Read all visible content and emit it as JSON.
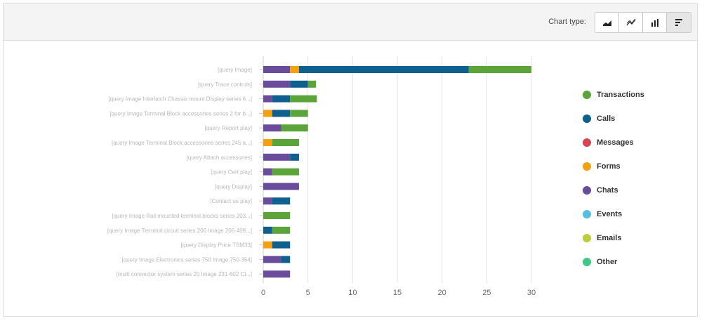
{
  "toolbar": {
    "chart_type_label": "Chart type:",
    "buttons": [
      {
        "name": "area-chart",
        "icon": "area-chart-icon",
        "active": false
      },
      {
        "name": "line-chart",
        "icon": "line-chart-icon",
        "active": false
      },
      {
        "name": "column-chart",
        "icon": "column-chart-icon",
        "active": false
      },
      {
        "name": "bar-chart",
        "icon": "bar-chart-icon",
        "active": true
      }
    ]
  },
  "chart_data": {
    "type": "bar",
    "orientation": "horizontal",
    "stacked": true,
    "xlim": [
      0,
      30
    ],
    "xticks": [
      0,
      5,
      10,
      15,
      20,
      25,
      30
    ],
    "grid": true,
    "legend_position": "right",
    "categories": [
      "[query Image]",
      "[query Trace controls]",
      "[query Image Interlatch Chassis mount Display series 6...]",
      "[query Image Terminal Block accessories series 2 for b...]",
      "[query Report play]",
      "[query Image Terminal Block accessories series 245 a...]",
      "[query Attach accessories]",
      "[query Cert play]",
      "[query Display]",
      "[Contact us play]",
      "[query Image Rail mounted terminal blocks series 203...]",
      "[query Image Terminal circuit series 206 Image 206-409...]",
      "[query Display Price TSM33]",
      "[query Image Electronics series 750 Image 750-354]",
      "[multi connector system series 20 Image 231-602 Cl...]"
    ],
    "series": [
      {
        "name": "Transactions",
        "color": "#5aa43a",
        "values": [
          7,
          0.9,
          3,
          2,
          3,
          3,
          0,
          3,
          0,
          0,
          3,
          2,
          0,
          0,
          0
        ]
      },
      {
        "name": "Calls",
        "color": "#0f5f8f",
        "values": [
          19,
          2,
          2,
          2,
          0,
          0,
          1,
          0,
          0,
          2,
          0,
          1,
          2,
          1,
          0
        ]
      },
      {
        "name": "Messages",
        "color": "#d64550",
        "values": [
          0,
          0,
          0,
          0,
          0,
          0,
          0,
          0,
          0,
          0,
          0,
          0,
          0,
          0,
          0
        ]
      },
      {
        "name": "Forms",
        "color": "#f5a011",
        "values": [
          1,
          0,
          0,
          1,
          0,
          1,
          0,
          0,
          0,
          0,
          0,
          0,
          1,
          0,
          0
        ]
      },
      {
        "name": "Chats",
        "color": "#6a4c9c",
        "values": [
          3,
          3,
          1,
          0,
          2,
          0,
          3,
          1,
          4,
          1,
          0,
          0,
          0,
          2,
          3
        ]
      },
      {
        "name": "Events",
        "color": "#55bde0",
        "values": [
          0,
          0,
          0,
          0,
          0,
          0,
          0,
          0,
          0,
          0,
          0,
          0,
          0,
          0,
          0
        ]
      },
      {
        "name": "Emails",
        "color": "#bccd3c",
        "values": [
          0,
          0,
          0,
          0,
          0,
          0,
          0,
          0,
          0,
          0,
          0,
          0,
          0,
          0,
          0
        ]
      },
      {
        "name": "Other",
        "color": "#3ec785",
        "values": [
          0,
          0,
          0,
          0,
          0,
          0,
          0,
          0,
          0,
          0,
          0,
          0,
          0,
          0,
          0
        ]
      }
    ],
    "stack_order": [
      "Chats",
      "Forms",
      "Calls",
      "Transactions",
      "Messages",
      "Events",
      "Emails",
      "Other"
    ]
  }
}
